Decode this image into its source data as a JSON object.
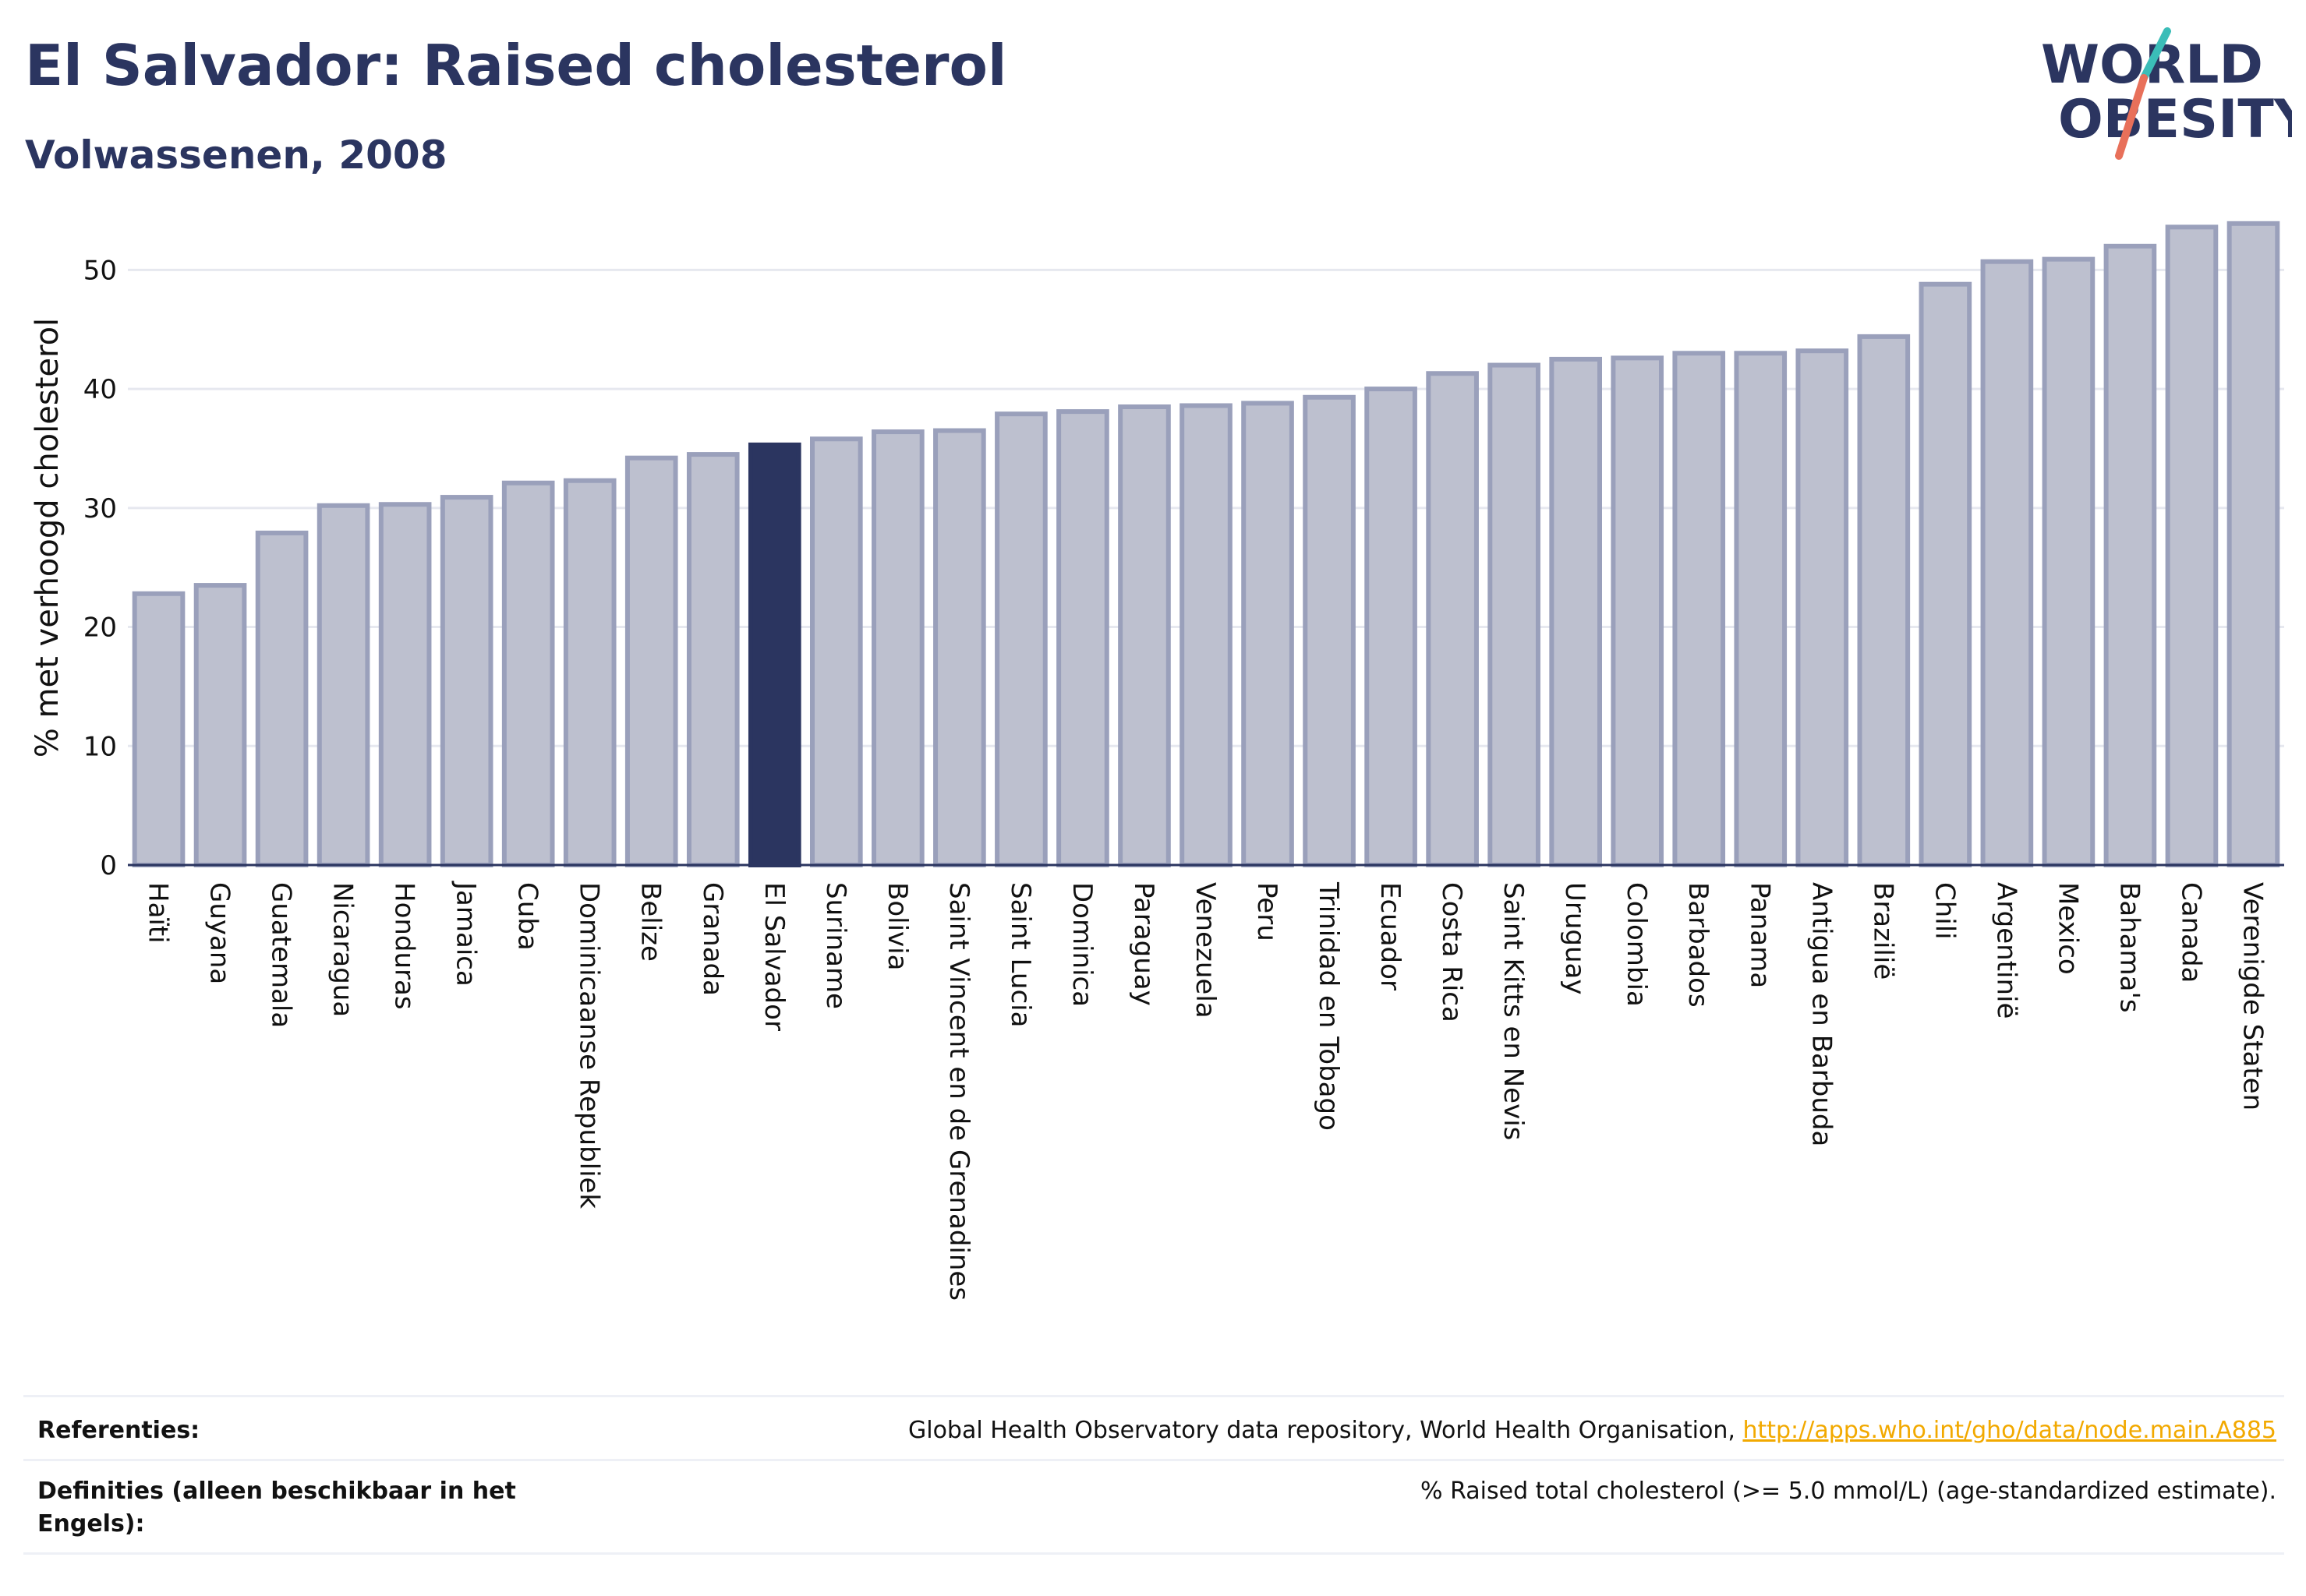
{
  "header": {
    "title": "El Salvador: Raised cholesterol",
    "subtitle": "Volwassenen, 2008"
  },
  "logo": {
    "line1": "WORLD",
    "line2": "OBESITY"
  },
  "colors": {
    "highlight": "#2b3560",
    "bar_fill": "#bdc0cf",
    "bar_edge": "#9aa0bb",
    "accent_red": "#e8705a",
    "accent_teal": "#3bbdb8",
    "link": "#f2a900"
  },
  "chart_data": {
    "type": "bar",
    "title": "El Salvador: Raised cholesterol",
    "subtitle": "Volwassenen, 2008",
    "xlabel": "",
    "ylabel": "% met verhoogd cholesterol",
    "ylim": [
      0,
      55
    ],
    "yticks": [
      0,
      10,
      20,
      30,
      40,
      50
    ],
    "grid": true,
    "highlight": "El Salvador",
    "categories": [
      "Haïti",
      "Guyana",
      "Guatemala",
      "Nicaragua",
      "Honduras",
      "Jamaica",
      "Cuba",
      "Dominicaanse Republiek",
      "Belize",
      "Granada",
      "El Salvador",
      "Suriname",
      "Bolivia",
      "Saint Vincent en de Grenadines",
      "Saint Lucia",
      "Dominica",
      "Paraguay",
      "Venezuela",
      "Peru",
      "Trinidad en Tobago",
      "Ecuador",
      "Costa Rica",
      "Saint Kitts en Nevis",
      "Uruguay",
      "Colombia",
      "Barbados",
      "Panama",
      "Antigua en Barbuda",
      "Brazilië",
      "Chili",
      "Argentinië",
      "Mexico",
      "Bahama's",
      "Canada",
      "Verenigde Staten"
    ],
    "values": [
      22.8,
      23.5,
      27.9,
      30.2,
      30.3,
      30.9,
      32.1,
      32.3,
      34.2,
      34.5,
      35.3,
      35.8,
      36.4,
      36.5,
      37.9,
      38.1,
      38.5,
      38.6,
      38.8,
      39.3,
      40.0,
      41.3,
      42.0,
      42.5,
      42.6,
      43.0,
      43.0,
      43.2,
      44.4,
      48.8,
      50.7,
      50.9,
      52.0,
      53.6,
      53.9
    ]
  },
  "footer": {
    "references_label": "Referenties:",
    "references_text": "Global Health Observatory data repository, World Health Organisation,",
    "references_link": "http://apps.who.int/gho/data/node.main.A885",
    "definitions_label": "Definities (alleen beschikbaar in het Engels):",
    "definitions_text": "% Raised total cholesterol (>= 5.0 mmol/L) (age-standardized estimate)."
  }
}
